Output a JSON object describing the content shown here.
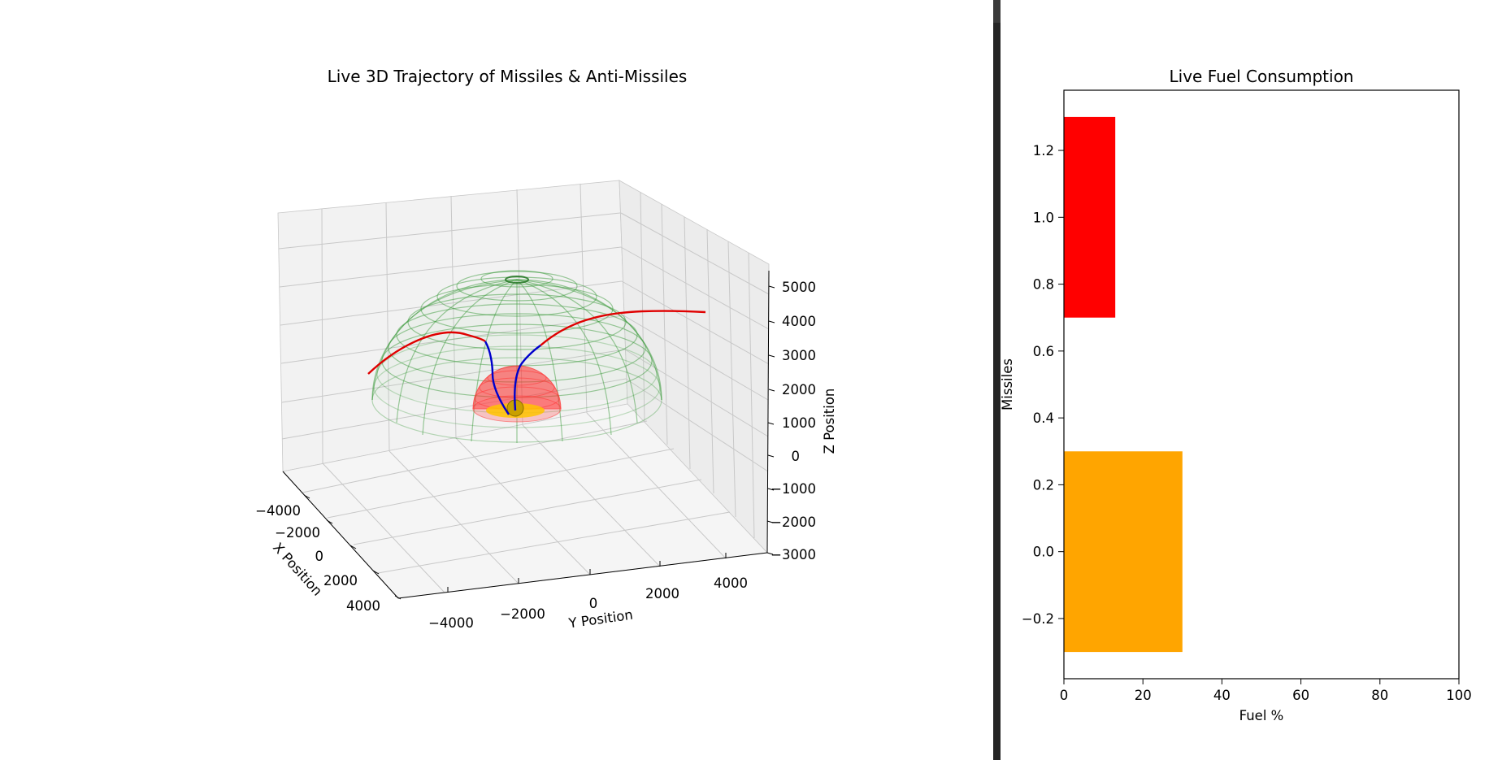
{
  "figure": {
    "colors": {
      "grid": "#c8c8c8",
      "pane": "#f2f2f2",
      "divider": "#252525",
      "outer_dome": "#3a9a3a",
      "inner_dome": "#ff3030",
      "core": "#ffc400",
      "missile_path": "#e00000",
      "interceptor_path": "#0000cc",
      "bar_missile_1": "#ff0000",
      "bar_missile_0": "#ffa500"
    }
  },
  "chart_data": [
    {
      "type": "scatter",
      "title": "Live 3D Trajectory of Missiles & Anti-Missiles",
      "xlabel": "X Position",
      "ylabel": "Y Position",
      "zlabel": "Z Position",
      "xlim": [
        -5000,
        5000
      ],
      "ylim": [
        -5000,
        5000
      ],
      "zlim": [
        -3000,
        5500
      ],
      "x_ticks": [
        "−4000",
        "−2000",
        "0",
        "2000",
        "4000"
      ],
      "y_ticks": [
        "−4000",
        "−2000",
        "0",
        "2000",
        "4000"
      ],
      "z_ticks": [
        "−3000",
        "−2000",
        "−1000",
        "0",
        "1000",
        "2000",
        "3000",
        "4000",
        "5000"
      ],
      "domes": [
        {
          "radius": 4000,
          "color": "green"
        },
        {
          "radius": 1200,
          "color": "red"
        },
        {
          "radius": 350,
          "color": "gold"
        }
      ]
    },
    {
      "type": "bar",
      "orientation": "horizontal",
      "title": "Live Fuel Consumption",
      "xlabel": "Fuel %",
      "ylabel": "Missiles",
      "xlim": [
        0,
        100
      ],
      "ylim": [
        -0.38,
        1.38
      ],
      "x_ticks": [
        "0",
        "20",
        "40",
        "60",
        "80",
        "100"
      ],
      "y_ticks": [
        "−0.2",
        "0.0",
        "0.2",
        "0.4",
        "0.6",
        "0.8",
        "1.0",
        "1.2"
      ],
      "categories": [
        0,
        1
      ],
      "values": [
        30,
        13
      ],
      "bar_height": 0.6
    }
  ]
}
